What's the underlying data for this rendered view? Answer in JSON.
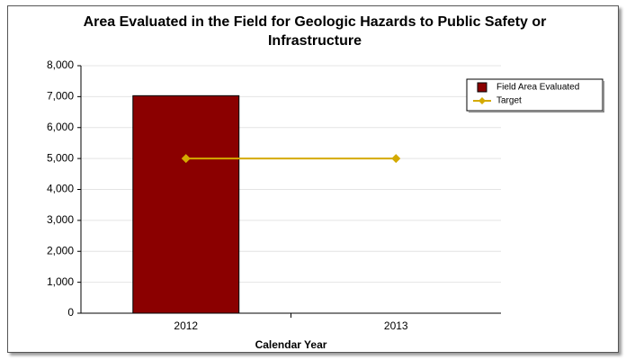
{
  "chart_data": {
    "type": "bar",
    "title": "Area Evaluated in the Field for Geologic Hazards to Public Safety or Infrastructure",
    "x_label": "Calendar Year",
    "categories": [
      "2012",
      "2013"
    ],
    "series": [
      {
        "name": "Field Area Evaluated",
        "type": "bar",
        "color": "#8b0000",
        "values": [
          7030,
          null
        ]
      },
      {
        "name": "Target",
        "type": "line",
        "color": "#d4aa00",
        "values": [
          5000,
          5000
        ]
      }
    ],
    "ylim": [
      0,
      8000
    ],
    "yticks": [
      0,
      {
        "value": 1000,
        "label": "1,000"
      },
      {
        "value": 2000,
        "label": "2,000"
      },
      {
        "value": 3000,
        "label": "3,000"
      },
      {
        "value": 4000,
        "label": "4,000"
      },
      {
        "value": 5000,
        "label": "5,000"
      },
      {
        "value": 6000,
        "label": "6,000"
      },
      {
        "value": 7000,
        "label": "7,000"
      },
      {
        "value": 8000,
        "label": "8,000"
      }
    ],
    "grid": true,
    "legend": "upper right"
  }
}
